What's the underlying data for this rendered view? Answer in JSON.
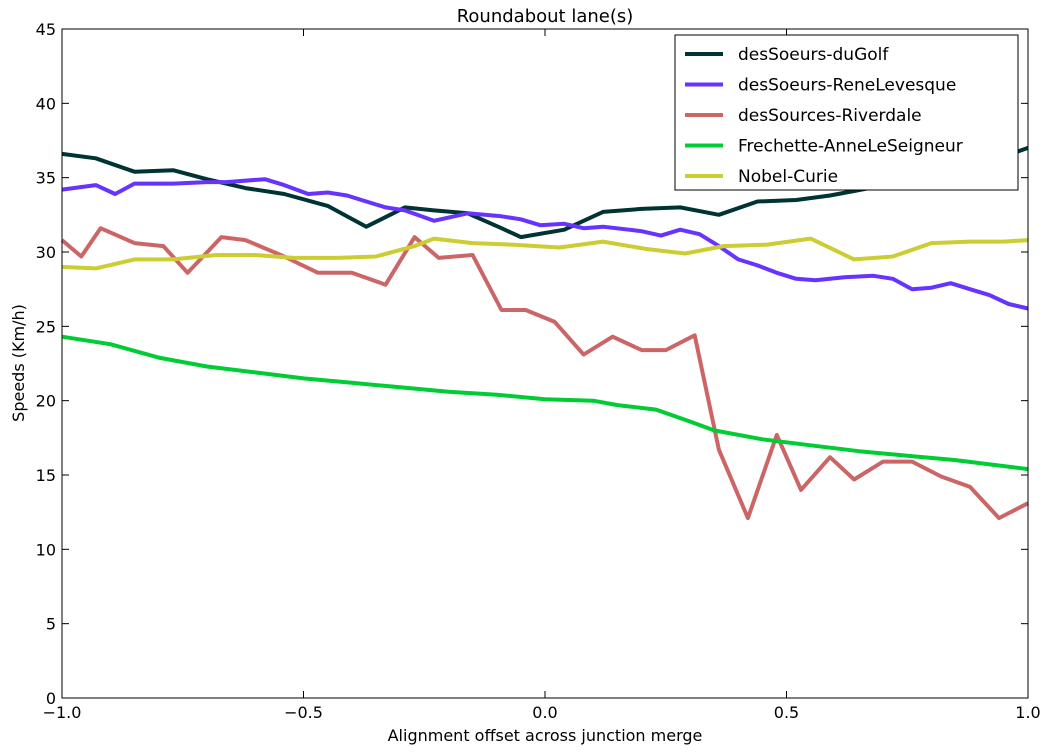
{
  "chart_data": {
    "type": "line",
    "title": "Roundabout lane(s)",
    "xlabel": "Alignment offset across junction merge",
    "ylabel": "Speeds (Km/h)",
    "xlim": [
      -1.0,
      1.0
    ],
    "ylim": [
      0,
      45
    ],
    "xticks": [
      -1.0,
      -0.5,
      0.0,
      0.5,
      1.0
    ],
    "xtick_labels": [
      "−1.0",
      "−0.5",
      "0.0",
      "0.5",
      "1.0"
    ],
    "yticks": [
      0,
      5,
      10,
      15,
      20,
      25,
      30,
      35,
      40,
      45
    ],
    "ytick_labels": [
      "0",
      "5",
      "10",
      "15",
      "20",
      "25",
      "30",
      "35",
      "40",
      "45"
    ],
    "grid": false,
    "legend_position": "top-right",
    "series": [
      {
        "name": "desSoeurs-duGolf",
        "color": "#003333",
        "x": [
          -1.0,
          -0.93,
          -0.85,
          -0.77,
          -0.7,
          -0.62,
          -0.54,
          -0.45,
          -0.37,
          -0.29,
          -0.23,
          -0.16,
          -0.09,
          -0.05,
          0.04,
          0.12,
          0.2,
          0.28,
          0.36,
          0.44,
          0.52,
          0.59,
          0.64,
          0.72,
          0.79,
          0.86,
          0.93,
          1.0
        ],
        "values": [
          36.6,
          36.3,
          35.4,
          35.5,
          34.9,
          34.3,
          33.9,
          33.1,
          31.7,
          33.0,
          32.8,
          32.6,
          31.6,
          31.0,
          31.5,
          32.7,
          32.9,
          33.0,
          32.5,
          33.4,
          33.5,
          33.8,
          34.1,
          34.6,
          35.1,
          35.7,
          36.2,
          37.0
        ]
      },
      {
        "name": "desSoeurs-ReneLevesque",
        "color": "#6633FF",
        "x": [
          -1.0,
          -0.93,
          -0.89,
          -0.85,
          -0.81,
          -0.77,
          -0.7,
          -0.66,
          -0.58,
          -0.54,
          -0.49,
          -0.45,
          -0.41,
          -0.37,
          -0.33,
          -0.29,
          -0.23,
          -0.16,
          -0.09,
          -0.05,
          -0.01,
          0.04,
          0.08,
          0.12,
          0.2,
          0.24,
          0.28,
          0.32,
          0.36,
          0.4,
          0.44,
          0.48,
          0.52,
          0.56,
          0.62,
          0.68,
          0.72,
          0.76,
          0.8,
          0.84,
          0.88,
          0.92,
          0.96,
          1.0
        ],
        "values": [
          34.2,
          34.5,
          33.9,
          34.6,
          34.6,
          34.6,
          34.7,
          34.7,
          34.9,
          34.5,
          33.9,
          34.0,
          33.8,
          33.4,
          33.0,
          32.8,
          32.1,
          32.6,
          32.4,
          32.2,
          31.8,
          31.9,
          31.6,
          31.7,
          31.4,
          31.1,
          31.5,
          31.2,
          30.4,
          29.5,
          29.1,
          28.6,
          28.2,
          28.1,
          28.3,
          28.4,
          28.2,
          27.5,
          27.6,
          27.9,
          27.5,
          27.1,
          26.5,
          26.2
        ]
      },
      {
        "name": "desSources-Riverdale",
        "color": "#CC6666",
        "x": [
          -1.0,
          -0.96,
          -0.92,
          -0.85,
          -0.79,
          -0.74,
          -0.67,
          -0.62,
          -0.54,
          -0.47,
          -0.4,
          -0.33,
          -0.27,
          -0.22,
          -0.15,
          -0.09,
          -0.04,
          0.02,
          0.08,
          0.14,
          0.2,
          0.25,
          0.31,
          0.36,
          0.42,
          0.48,
          0.53,
          0.59,
          0.64,
          0.7,
          0.76,
          0.82,
          0.88,
          0.94,
          1.0
        ],
        "values": [
          30.8,
          29.7,
          31.6,
          30.6,
          30.4,
          28.6,
          31.0,
          30.8,
          29.7,
          28.6,
          28.6,
          27.8,
          31.0,
          29.6,
          29.8,
          26.1,
          26.1,
          25.3,
          23.1,
          24.3,
          23.4,
          23.4,
          24.4,
          16.7,
          12.1,
          17.7,
          14.0,
          16.2,
          14.7,
          15.9,
          15.9,
          14.9,
          14.2,
          12.1,
          13.1
        ]
      },
      {
        "name": "Frechette-AnneLeSeigneur",
        "color": "#00CC33",
        "x": [
          -1.0,
          -0.9,
          -0.8,
          -0.7,
          -0.6,
          -0.5,
          -0.4,
          -0.3,
          -0.2,
          -0.1,
          0.0,
          0.1,
          0.15,
          0.23,
          0.3,
          0.35,
          0.45,
          0.55,
          0.65,
          0.75,
          0.85,
          0.95,
          1.0
        ],
        "values": [
          24.3,
          23.8,
          22.9,
          22.3,
          21.9,
          21.5,
          21.2,
          20.9,
          20.6,
          20.4,
          20.1,
          20.0,
          19.7,
          19.4,
          18.6,
          18.0,
          17.4,
          17.0,
          16.6,
          16.3,
          16.0,
          15.6,
          15.4
        ]
      },
      {
        "name": "Nobel-Curie",
        "color": "#CCCC33",
        "x": [
          -1.0,
          -0.93,
          -0.85,
          -0.77,
          -0.68,
          -0.6,
          -0.52,
          -0.43,
          -0.35,
          -0.27,
          -0.23,
          -0.15,
          -0.07,
          0.03,
          0.12,
          0.21,
          0.29,
          0.37,
          0.46,
          0.55,
          0.64,
          0.72,
          0.8,
          0.88,
          0.95,
          1.0
        ],
        "values": [
          29.0,
          28.9,
          29.5,
          29.5,
          29.8,
          29.8,
          29.6,
          29.6,
          29.7,
          30.4,
          30.9,
          30.6,
          30.5,
          30.3,
          30.7,
          30.2,
          29.9,
          30.4,
          30.5,
          30.9,
          29.5,
          29.7,
          30.6,
          30.7,
          30.7,
          30.8
        ]
      }
    ]
  }
}
